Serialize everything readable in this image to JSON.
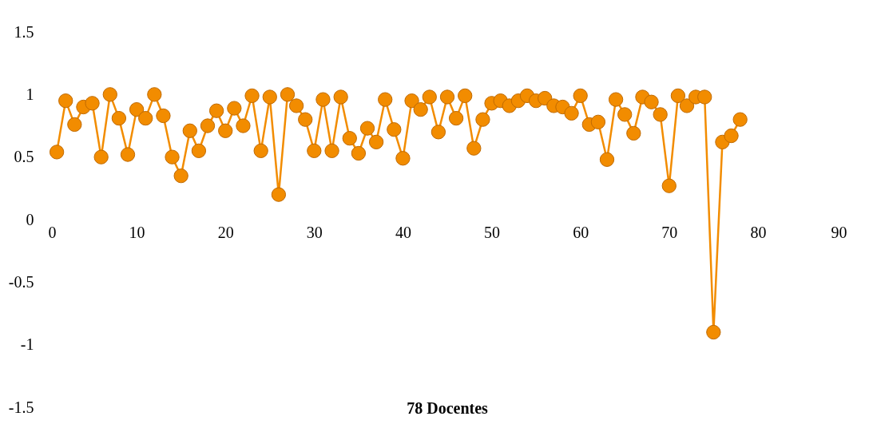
{
  "chart_data": {
    "type": "line",
    "xlabel": "78 Docentes",
    "x": [
      1,
      2,
      3,
      4,
      5,
      6,
      7,
      8,
      9,
      10,
      11,
      12,
      13,
      14,
      15,
      16,
      17,
      18,
      19,
      20,
      21,
      22,
      23,
      24,
      25,
      26,
      27,
      28,
      29,
      30,
      31,
      32,
      33,
      34,
      35,
      36,
      37,
      38,
      39,
      40,
      41,
      42,
      43,
      44,
      45,
      46,
      47,
      48,
      49,
      50,
      51,
      52,
      53,
      54,
      55,
      56,
      57,
      58,
      59,
      60,
      61,
      62,
      63,
      64,
      65,
      66,
      67,
      68,
      69,
      70,
      71,
      72,
      73,
      74,
      75,
      76,
      77,
      78
    ],
    "series": [
      {
        "color": "#f28c00",
        "values": [
          0.54,
          0.95,
          0.76,
          0.9,
          0.93,
          0.5,
          1.0,
          0.81,
          0.52,
          0.88,
          0.81,
          1.0,
          0.83,
          0.5,
          0.35,
          0.71,
          0.55,
          0.75,
          0.87,
          0.71,
          0.89,
          0.75,
          0.99,
          0.55,
          0.98,
          0.2,
          1.0,
          0.91,
          0.8,
          0.55,
          0.96,
          0.55,
          0.98,
          0.65,
          0.53,
          0.73,
          0.62,
          0.96,
          0.72,
          0.49,
          0.95,
          0.88,
          0.98,
          0.7,
          0.98,
          0.81,
          0.99,
          0.57,
          0.8,
          0.93,
          0.95,
          0.91,
          0.95,
          0.99,
          0.95,
          0.97,
          0.91,
          0.9,
          0.85,
          0.99,
          0.76,
          0.78,
          0.48,
          0.96,
          0.84,
          0.69,
          0.98,
          0.94,
          0.84,
          0.27,
          0.99,
          0.91,
          0.98,
          0.98,
          -0.9,
          0.62,
          0.67,
          0.8
        ]
      }
    ],
    "xlim": [
      0,
      90
    ],
    "xticks": [
      0,
      10,
      20,
      30,
      40,
      50,
      60,
      70,
      80,
      90
    ],
    "ylim": [
      -1.5,
      1.5
    ],
    "yticks": [
      -1.5,
      -1,
      -0.5,
      0,
      0.5,
      1,
      1.5
    ],
    "grid": false,
    "marker": "circle",
    "line_style": "solid"
  }
}
